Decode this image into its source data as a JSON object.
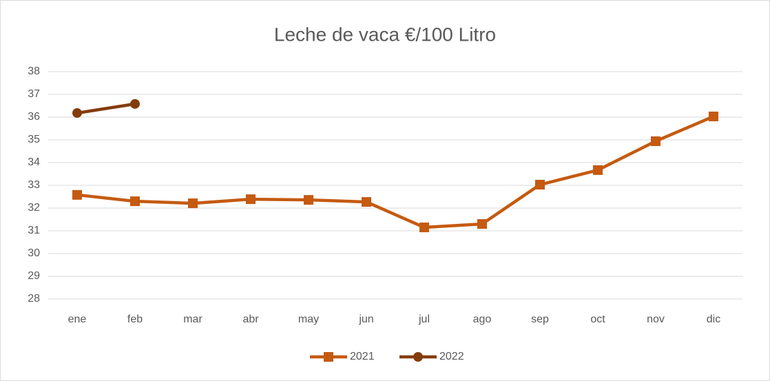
{
  "chart_data": {
    "type": "line",
    "title": "Leche de vaca €/100 Litro",
    "categories": [
      "ene",
      "feb",
      "mar",
      "abr",
      "may",
      "jun",
      "jul",
      "ago",
      "sep",
      "oct",
      "nov",
      "dic"
    ],
    "series": [
      {
        "name": "2021",
        "color": "#c55a11",
        "marker": "square",
        "values": [
          32.58,
          32.3,
          32.21,
          32.39,
          32.36,
          32.27,
          31.15,
          31.3,
          33.03,
          33.67,
          34.94,
          36.03
        ]
      },
      {
        "name": "2022",
        "color": "#843c0c",
        "marker": "circle",
        "values": [
          36.18,
          36.58,
          null,
          null,
          null,
          null,
          null,
          null,
          null,
          null,
          null,
          null
        ]
      }
    ],
    "ylim": [
      28,
      38
    ],
    "yticks": [
      28,
      29,
      30,
      31,
      32,
      33,
      34,
      35,
      36,
      37,
      38
    ],
    "grid": true,
    "legend": "bottom"
  }
}
